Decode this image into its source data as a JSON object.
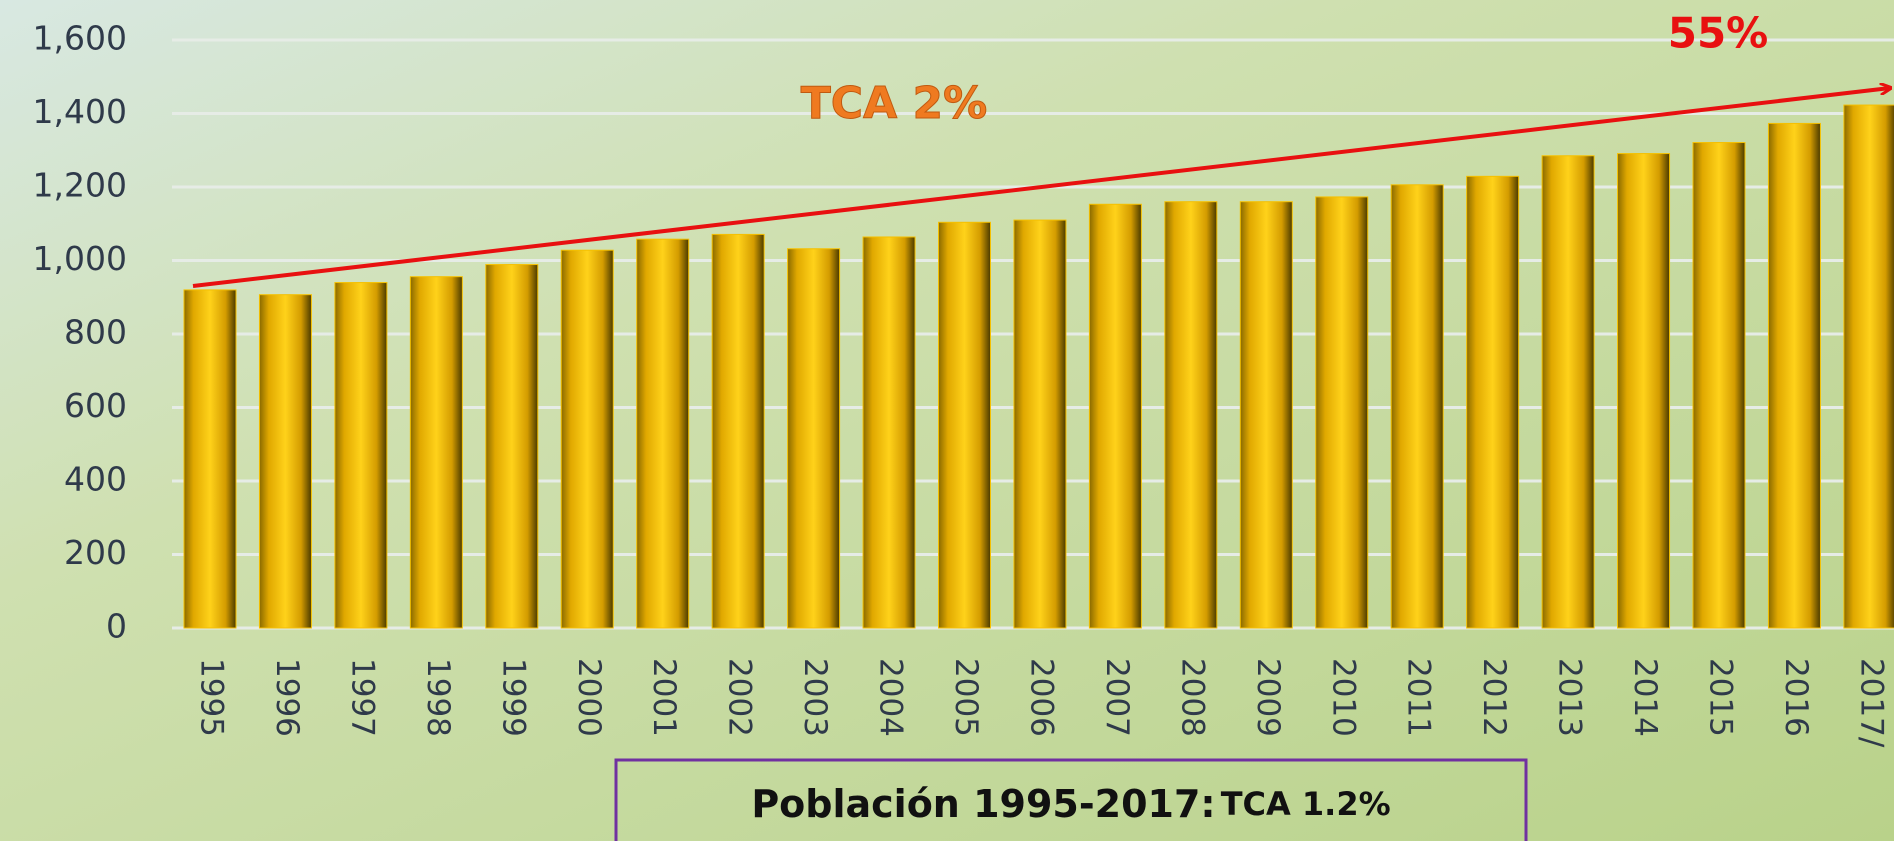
{
  "chart_data": {
    "type": "bar",
    "title": "Población 1995-2017:",
    "title_note": "TCA 1.2%",
    "annotations": [
      "TCA 2%",
      "55%"
    ],
    "categories": [
      "1995",
      "1996",
      "1997",
      "1998",
      "1999",
      "2000",
      "2001",
      "2002",
      "2003",
      "2004",
      "2005",
      "2006",
      "2007",
      "2008",
      "2009",
      "2010",
      "2011",
      "2012",
      "2013",
      "2014",
      "2015",
      "2016",
      "2017/"
    ],
    "values": [
      920,
      907,
      940,
      956,
      989,
      1028,
      1058,
      1071,
      1032,
      1064,
      1104,
      1110,
      1153,
      1160,
      1160,
      1173,
      1206,
      1229,
      1285,
      1291,
      1321,
      1373,
      1423
    ],
    "color": "#f5c000",
    "ylim": [
      0,
      1600
    ],
    "yticks": [
      0,
      {
        "value": 200,
        "label": "200"
      },
      400,
      600,
      800,
      {
        "value": 1000,
        "label": "1,000"
      },
      {
        "value": 1200,
        "label": "1,200"
      },
      {
        "value": 1400,
        "label": "1,400"
      },
      {
        "value": 1600,
        "label": "1,600"
      }
    ],
    "grid": true
  }
}
